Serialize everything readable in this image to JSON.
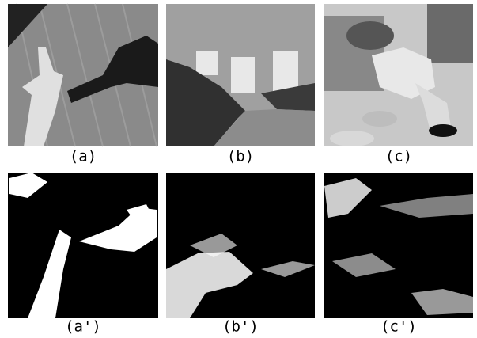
{
  "panels": [
    {
      "label": "(a)"
    },
    {
      "label": "(b)"
    },
    {
      "label": "(c)"
    },
    {
      "label": "(a')"
    },
    {
      "label": "(b')"
    },
    {
      "label": "(c')"
    }
  ]
}
